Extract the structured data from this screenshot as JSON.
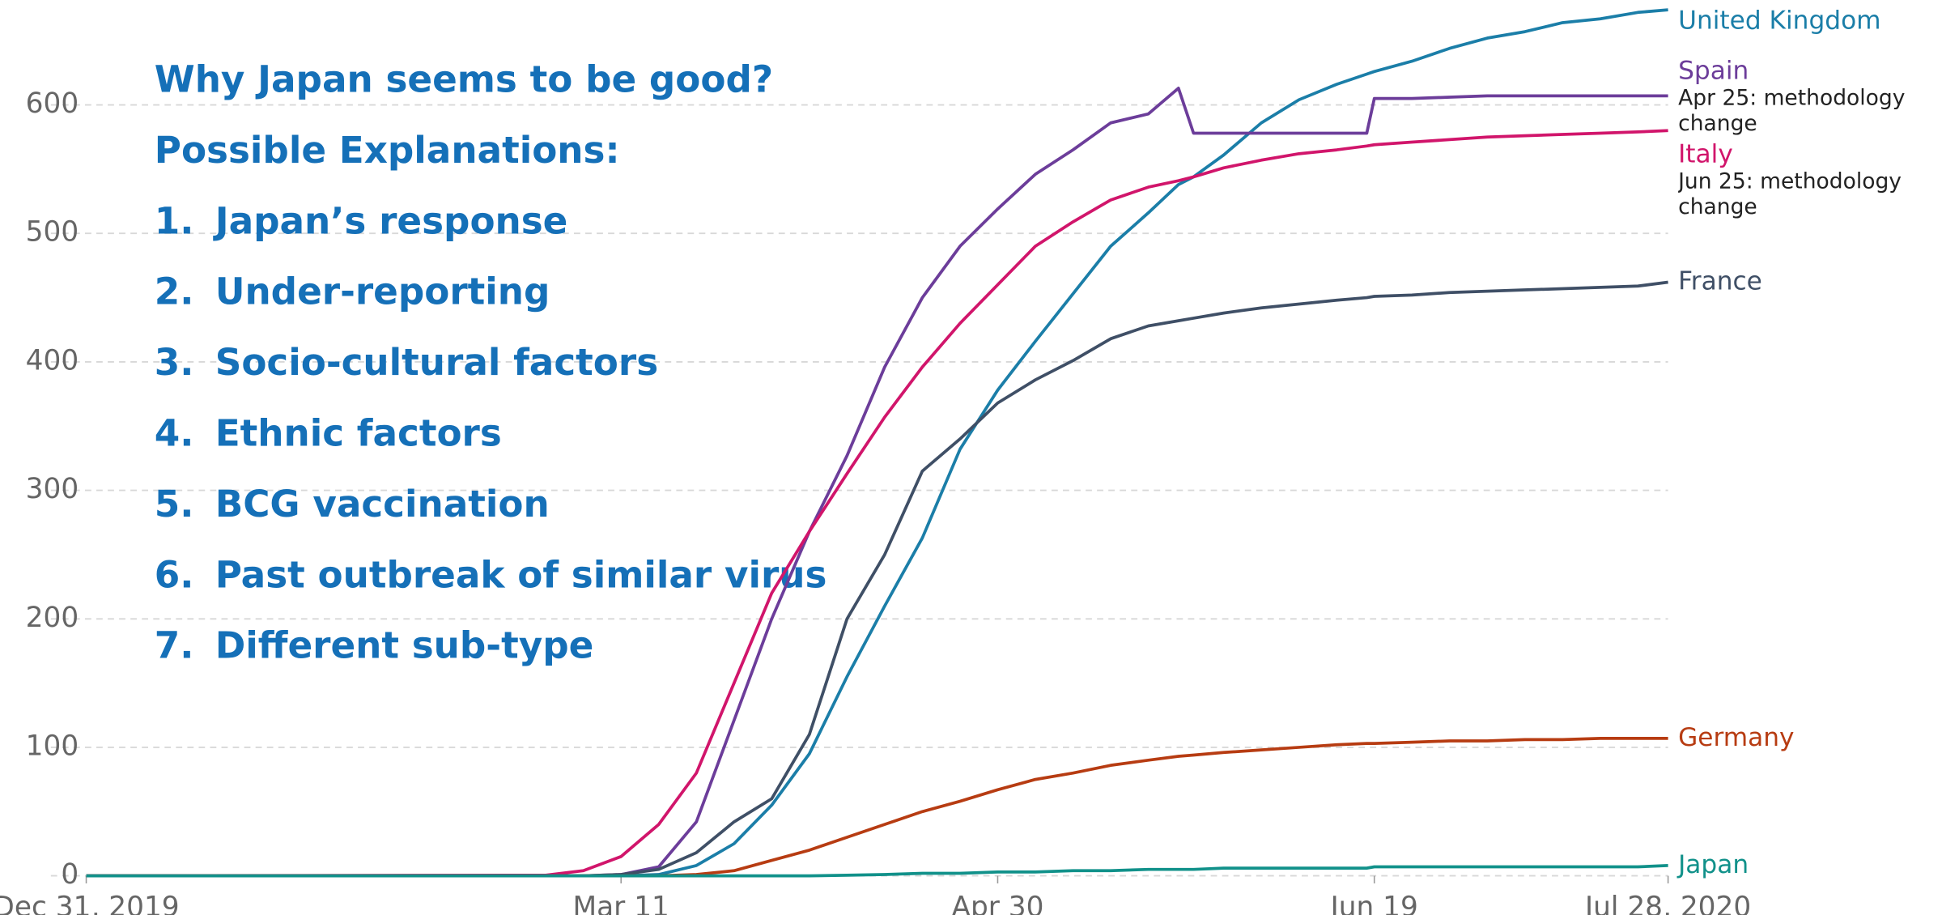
{
  "chart_data": {
    "type": "line",
    "x": [
      "2019-12-31",
      "2020-03-01",
      "2020-03-06",
      "2020-03-11",
      "2020-03-16",
      "2020-03-21",
      "2020-03-26",
      "2020-03-31",
      "2020-04-05",
      "2020-04-10",
      "2020-04-15",
      "2020-04-20",
      "2020-04-25",
      "2020-04-30",
      "2020-05-05",
      "2020-05-10",
      "2020-05-15",
      "2020-05-20",
      "2020-05-24",
      "2020-05-26",
      "2020-05-30",
      "2020-06-04",
      "2020-06-09",
      "2020-06-14",
      "2020-06-18",
      "2020-06-19",
      "2020-06-24",
      "2020-06-29",
      "2020-07-04",
      "2020-07-09",
      "2020-07-14",
      "2020-07-19",
      "2020-07-24",
      "2020-07-28"
    ],
    "xlim": [
      "2019-12-31",
      "2020-07-28"
    ],
    "xticks": [
      {
        "value": "2019-12-31",
        "label": "Dec 31, 2019"
      },
      {
        "value": "2020-03-11",
        "label": "Mar 11"
      },
      {
        "value": "2020-04-30",
        "label": "Apr 30"
      },
      {
        "value": "2020-06-19",
        "label": "Jun 19"
      },
      {
        "value": "2020-07-28",
        "label": "Jul 28, 2020"
      }
    ],
    "ylim": [
      0,
      680
    ],
    "yticks": [
      0,
      100,
      200,
      300,
      400,
      500,
      600
    ],
    "grid": true,
    "series": [
      {
        "name": "United Kingdom",
        "color": "#1b7ea8",
        "values": [
          0,
          0,
          0,
          0,
          1,
          8,
          25,
          55,
          95,
          155,
          210,
          263,
          332,
          378,
          416,
          453,
          490,
          516,
          538,
          544,
          561,
          586,
          604,
          616,
          624,
          626,
          634,
          644,
          652,
          657,
          664,
          667,
          672,
          674
        ]
      },
      {
        "name": "Spain",
        "color": "#6c3d9a",
        "note": "Apr 25: methodology change",
        "values": [
          0,
          0,
          0,
          1,
          7,
          42,
          121,
          200,
          268,
          327,
          396,
          450,
          490,
          519,
          546,
          565,
          586,
          593,
          613,
          578,
          578,
          578,
          578,
          578,
          578,
          605,
          605,
          606,
          607,
          607,
          607,
          607,
          607,
          607
        ]
      },
      {
        "name": "Italy",
        "color": "#d1156b",
        "note": "Jun 25: methodology change",
        "values": [
          0,
          0.5,
          4,
          15,
          40,
          80,
          150,
          220,
          268,
          313,
          357,
          396,
          430,
          460,
          490,
          509,
          526,
          536,
          541,
          544,
          551,
          557,
          562,
          565,
          568,
          569,
          571,
          573,
          575,
          576,
          577,
          578,
          579,
          580
        ]
      },
      {
        "name": "France",
        "color": "#3f4f66",
        "values": [
          0,
          0,
          0,
          1,
          5,
          18,
          42,
          60,
          110,
          200,
          250,
          315,
          340,
          368,
          386,
          401,
          418,
          428,
          432,
          434,
          438,
          442,
          445,
          448,
          450,
          451,
          452,
          454,
          455,
          456,
          457,
          458,
          459,
          462
        ]
      },
      {
        "name": "Germany",
        "color": "#b73c12",
        "values": [
          0,
          0,
          0,
          0,
          0,
          1,
          4,
          12,
          20,
          30,
          40,
          50,
          58,
          67,
          75,
          80,
          86,
          90,
          93,
          94,
          96,
          98,
          100,
          102,
          103,
          103,
          104,
          105,
          105,
          106,
          106,
          107,
          107,
          107
        ]
      },
      {
        "name": "Japan",
        "color": "#11918a",
        "values": [
          0,
          0,
          0,
          0,
          0,
          0,
          0,
          0,
          0,
          0.5,
          1,
          2,
          2,
          3,
          3,
          4,
          4,
          5,
          5,
          5,
          6,
          6,
          6,
          6,
          6,
          7,
          7,
          7,
          7,
          7,
          7,
          7,
          7,
          8
        ]
      }
    ],
    "annotations": {
      "heading": "Why Japan seems to be good?",
      "subheading": "Possible Explanations:",
      "items": [
        {
          "number": "1.",
          "text": "Japan’s response"
        },
        {
          "number": "2.",
          "text": "Under-reporting"
        },
        {
          "number": "3.",
          "text": "Socio-cultural factors"
        },
        {
          "number": "4.",
          "text": "Ethnic factors"
        },
        {
          "number": "5.",
          "text": "BCG vaccination"
        },
        {
          "number": "6.",
          "text": "Past outbreak of similar virus"
        },
        {
          "number": "7.",
          "text": "Different sub-type"
        }
      ]
    }
  }
}
